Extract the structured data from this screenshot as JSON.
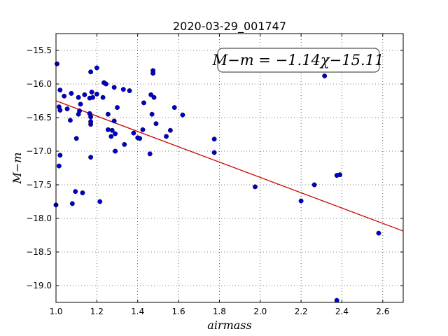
{
  "chart_data": {
    "type": "scatter",
    "title": "2020-03-29_001747",
    "xlabel": "airmass",
    "ylabel": "M−m",
    "xlim": [
      1.0,
      2.7
    ],
    "ylim": [
      -19.25,
      -15.25
    ],
    "x_ticks": [
      1.0,
      1.2,
      1.4,
      1.6,
      1.8,
      2.0,
      2.2,
      2.4,
      2.6
    ],
    "x_tick_labels": [
      "1.0",
      "1.2",
      "1.4",
      "1.6",
      "1.8",
      "2.0",
      "2.2",
      "2.4",
      "2.6"
    ],
    "y_ticks": [
      -15.5,
      -16.0,
      -16.5,
      -17.0,
      -17.5,
      -18.0,
      -18.5,
      -19.0
    ],
    "y_tick_labels": [
      "−15.5",
      "−16.0",
      "−16.5",
      "−17.0",
      "−17.5",
      "−18.0",
      "−18.5",
      "−19.0"
    ],
    "grid": true,
    "annotation": "M−m = −1.14χ−15.11",
    "fit": {
      "slope": -1.14,
      "intercept": -15.11,
      "color": "#cc0000"
    },
    "marker_color": "#0000cc",
    "points": [
      [
        1.005,
        -15.7
      ],
      [
        1.0,
        -17.8
      ],
      [
        1.015,
        -16.34
      ],
      [
        1.02,
        -16.39
      ],
      [
        1.02,
        -16.09
      ],
      [
        1.015,
        -17.22
      ],
      [
        1.02,
        -17.06
      ],
      [
        1.04,
        -16.18
      ],
      [
        1.055,
        -16.37
      ],
      [
        1.07,
        -16.54
      ],
      [
        1.075,
        -16.14
      ],
      [
        1.08,
        -17.78
      ],
      [
        1.095,
        -17.6
      ],
      [
        1.1,
        -16.81
      ],
      [
        1.11,
        -16.2
      ],
      [
        1.11,
        -16.45
      ],
      [
        1.115,
        -16.4
      ],
      [
        1.12,
        -16.3
      ],
      [
        1.13,
        -17.62
      ],
      [
        1.14,
        -16.16
      ],
      [
        1.165,
        -16.21
      ],
      [
        1.165,
        -16.44
      ],
      [
        1.17,
        -16.49
      ],
      [
        1.17,
        -16.56
      ],
      [
        1.17,
        -16.6
      ],
      [
        1.17,
        -15.82
      ],
      [
        1.175,
        -16.12
      ],
      [
        1.17,
        -17.09
      ],
      [
        1.18,
        -16.2
      ],
      [
        1.2,
        -15.76
      ],
      [
        1.2,
        -16.15
      ],
      [
        1.215,
        -17.75
      ],
      [
        1.23,
        -16.2
      ],
      [
        1.235,
        -15.98
      ],
      [
        1.245,
        -16.0
      ],
      [
        1.255,
        -16.45
      ],
      [
        1.255,
        -16.68
      ],
      [
        1.27,
        -16.78
      ],
      [
        1.275,
        -16.69
      ],
      [
        1.285,
        -16.05
      ],
      [
        1.285,
        -16.55
      ],
      [
        1.29,
        -16.74
      ],
      [
        1.29,
        -17.0
      ],
      [
        1.3,
        -16.35
      ],
      [
        1.33,
        -16.08
      ],
      [
        1.335,
        -16.9
      ],
      [
        1.36,
        -16.1
      ],
      [
        1.38,
        -16.73
      ],
      [
        1.4,
        -16.8
      ],
      [
        1.41,
        -16.81
      ],
      [
        1.425,
        -16.68
      ],
      [
        1.43,
        -16.28
      ],
      [
        1.46,
        -17.04
      ],
      [
        1.465,
        -16.16
      ],
      [
        1.475,
        -15.8
      ],
      [
        1.475,
        -15.84
      ],
      [
        1.47,
        -16.45
      ],
      [
        1.48,
        -16.2
      ],
      [
        1.49,
        -16.59
      ],
      [
        1.54,
        -16.78
      ],
      [
        1.56,
        -16.69
      ],
      [
        1.58,
        -16.35
      ],
      [
        1.62,
        -16.46
      ],
      [
        1.775,
        -16.82
      ],
      [
        1.775,
        -17.02
      ],
      [
        1.975,
        -17.53
      ],
      [
        2.2,
        -17.74
      ],
      [
        2.265,
        -17.5
      ],
      [
        2.315,
        -15.88
      ],
      [
        2.375,
        -17.36
      ],
      [
        2.39,
        -17.35
      ],
      [
        2.375,
        -19.22
      ],
      [
        2.58,
        -18.22
      ]
    ]
  }
}
